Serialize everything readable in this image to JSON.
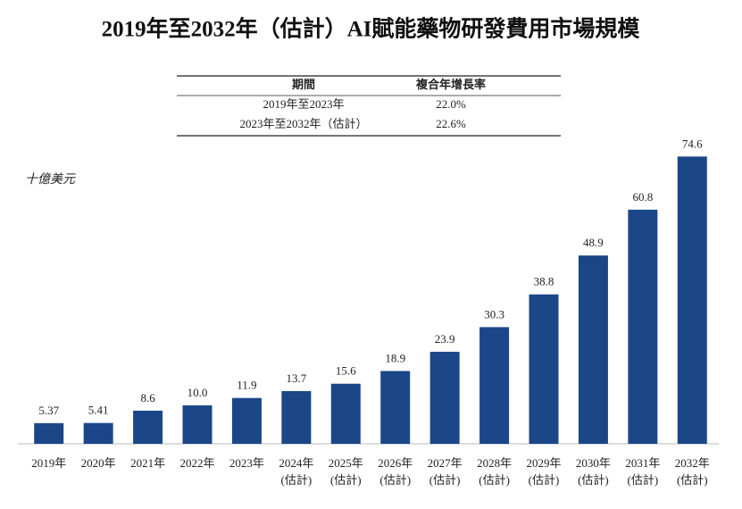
{
  "chart_data": {
    "type": "bar",
    "title": "2019年至2032年（估計）AI賦能藥物研發費用市場規模",
    "unit_label": "十億美元",
    "table": {
      "header": [
        "期間",
        "複合年增長率"
      ],
      "rows": [
        [
          "2019年至2023年",
          "22.0%"
        ],
        [
          "2023年至2032年（估計）",
          "22.6%"
        ]
      ]
    },
    "categories": [
      "2019年",
      "2020年",
      "2021年",
      "2022年",
      "2023年",
      "2024年",
      "2025年",
      "2026年",
      "2027年",
      "2028年",
      "2029年",
      "2030年",
      "2031年",
      "2032年"
    ],
    "category_notes": [
      null,
      null,
      null,
      null,
      null,
      "(估計)",
      "(估計)",
      "(估計)",
      "(估計)",
      "(估計)",
      "(估計)",
      "(估計)",
      "(估計)",
      "(估計)"
    ],
    "values": [
      5.37,
      5.41,
      8.6,
      10.0,
      11.9,
      13.7,
      15.6,
      18.9,
      23.9,
      30.3,
      38.8,
      48.9,
      60.8,
      74.6
    ],
    "value_labels": [
      "5.37",
      "5.41",
      "8.6",
      "10.0",
      "11.9",
      "13.7",
      "15.6",
      "18.9",
      "23.9",
      "30.3",
      "38.8",
      "48.9",
      "60.8",
      "74.6"
    ],
    "color": "#1b4788",
    "ylim": [
      0,
      80
    ]
  }
}
